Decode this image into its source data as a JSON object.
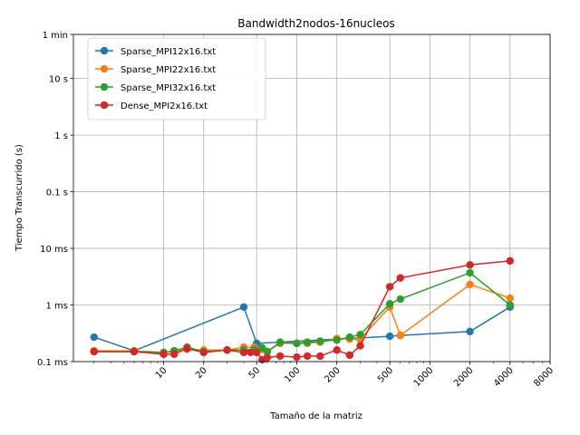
{
  "chart_data": {
    "type": "line",
    "title": "Bandwidth2nodos-16nucleos",
    "xlabel": "Tamaño de la matriz",
    "ylabel": "Tiempo Transcurrido (s)",
    "x_scale": "log",
    "y_scale": "log",
    "xlim": [
      2.1,
      8000
    ],
    "ylim": [
      0.0001,
      60
    ],
    "grid": true,
    "legend_position": "top-left",
    "x_ticks": [
      {
        "value": 10,
        "label": "10"
      },
      {
        "value": 20,
        "label": "20"
      },
      {
        "value": 50,
        "label": "50"
      },
      {
        "value": 100,
        "label": "100"
      },
      {
        "value": 200,
        "label": "200"
      },
      {
        "value": 500,
        "label": "500"
      },
      {
        "value": 1000,
        "label": "1000"
      },
      {
        "value": 2000,
        "label": "2000"
      },
      {
        "value": 4000,
        "label": "4000"
      },
      {
        "value": 8000,
        "label": "8000"
      }
    ],
    "y_ticks": [
      {
        "value": 0.0001,
        "label": "0.1 ms"
      },
      {
        "value": 0.001,
        "label": "1 ms"
      },
      {
        "value": 0.01,
        "label": "10 ms"
      },
      {
        "value": 0.1,
        "label": "0.1 s"
      },
      {
        "value": 1,
        "label": "1 s"
      },
      {
        "value": 10,
        "label": "10 s"
      },
      {
        "value": 60,
        "label": "1 min"
      }
    ],
    "series": [
      {
        "name": "Sparse_MPI12x16.txt",
        "color": "#1f77b4",
        "x": [
          3,
          6,
          40,
          50,
          500,
          600,
          2000,
          4000
        ],
        "y": [
          0.00027,
          0.000155,
          0.00092,
          0.00021,
          0.00028,
          0.00029,
          0.00034,
          0.00092
        ]
      },
      {
        "name": "Sparse_MPI22x16.txt",
        "color": "#ff7f0e",
        "x": [
          3,
          6,
          10,
          12,
          15,
          20,
          30,
          40,
          48,
          55,
          60,
          75,
          100,
          120,
          150,
          200,
          250,
          300,
          500,
          600,
          2000,
          4000
        ],
        "y": [
          0.000155,
          0.000155,
          0.000145,
          0.00015,
          0.000165,
          0.00016,
          0.00016,
          0.00018,
          0.00018,
          0.000165,
          0.00015,
          0.00021,
          0.00021,
          0.00021,
          0.00022,
          0.000255,
          0.00025,
          0.00025,
          0.00092,
          0.00029,
          0.0023,
          0.00132
        ]
      },
      {
        "name": "Sparse_MPI32x16.txt",
        "color": "#2ca02c",
        "x": [
          3,
          6,
          10,
          12,
          15,
          20,
          30,
          40,
          48,
          55,
          60,
          75,
          100,
          120,
          150,
          200,
          250,
          300,
          500,
          600,
          2000,
          4000
        ],
        "y": [
          0.00015,
          0.00015,
          0.000145,
          0.000155,
          0.00018,
          0.00015,
          0.00016,
          0.00016,
          0.000165,
          0.000175,
          0.00015,
          0.00022,
          0.00021,
          0.00022,
          0.00023,
          0.00024,
          0.00027,
          0.0003,
          0.00105,
          0.00127,
          0.0037,
          0.001
        ]
      },
      {
        "name": "Dense_MPI2x16.txt",
        "color": "#d62728",
        "x": [
          3,
          6,
          10,
          12,
          15,
          20,
          30,
          40,
          45,
          50,
          55,
          60,
          75,
          100,
          120,
          150,
          200,
          250,
          300,
          500,
          600,
          2000,
          4000
        ],
        "y": [
          0.00015,
          0.00015,
          0.000135,
          0.000135,
          0.00017,
          0.000145,
          0.00016,
          0.000145,
          0.000145,
          0.000145,
          0.000108,
          0.000118,
          0.000125,
          0.00012,
          0.000125,
          0.000125,
          0.00016,
          0.00013,
          0.00019,
          0.0021,
          0.003,
          0.0051,
          0.006
        ]
      }
    ]
  }
}
